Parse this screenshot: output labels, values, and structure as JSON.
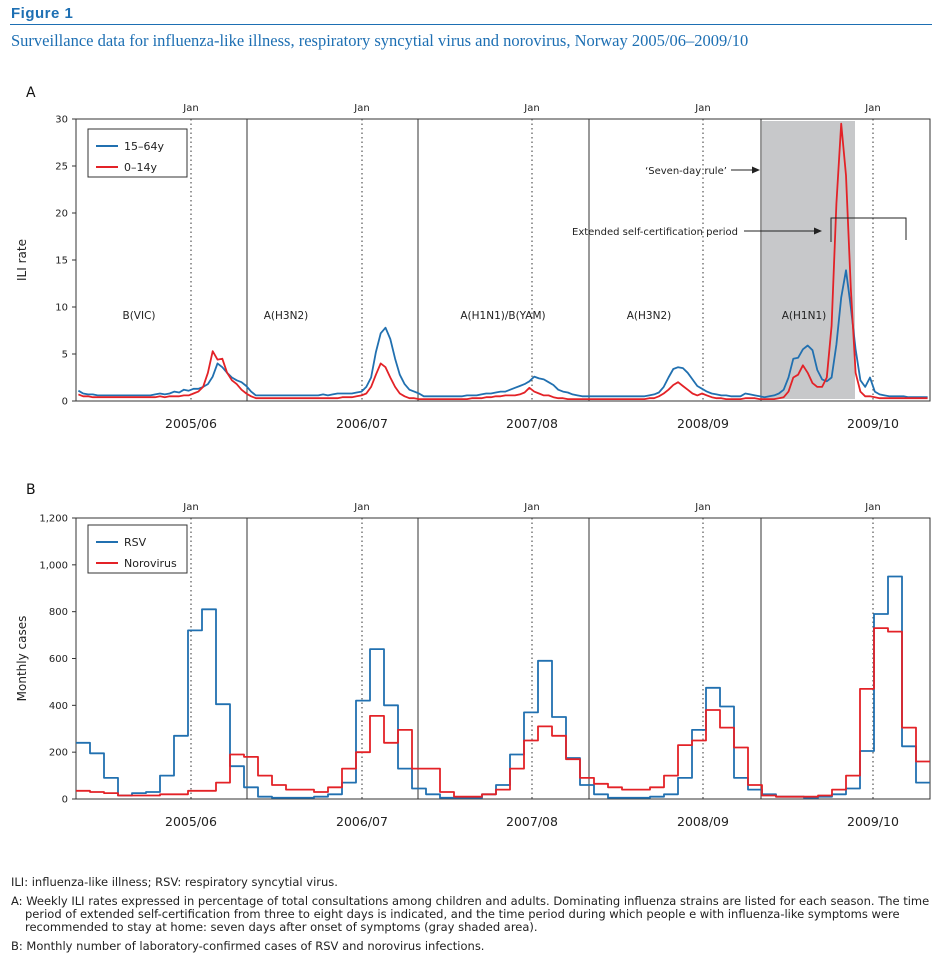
{
  "figure_label": "Figure 1",
  "figure_title": "Surveillance data for influenza-like illness, respiratory syncytial virus and norovirus, Norway 2005/06–2009/10",
  "colors": {
    "blue": "#2170b0",
    "red": "#e32227",
    "shade": "#c7c8ca",
    "accent": "#1d6fb3"
  },
  "chart_data": [
    {
      "panel": "A",
      "type": "line",
      "ylabel": "ILI rate",
      "ylim": [
        0,
        30
      ],
      "yticks": [
        "0",
        "5",
        "10",
        "15",
        "20",
        "25",
        "30"
      ],
      "season_labels": [
        "2005/06",
        "2006/07",
        "2007/08",
        "2008/09",
        "2009/10"
      ],
      "jan_label": "Jan",
      "strains": [
        "B(VIC)",
        "A(H3N2)",
        "A(H1N1)/B(YAM)",
        "A(H3N2)",
        "A(H1N1)"
      ],
      "legend": [
        "15–64y",
        "0–14y"
      ],
      "annotations": {
        "seven_day": "‘Seven-day rule’",
        "extended": "Extended self-certification period"
      },
      "series": [
        {
          "name": "15–64y",
          "values": [
            1.1,
            0.8,
            0.7,
            0.7,
            0.6,
            0.6,
            0.6,
            0.6,
            0.6,
            0.6,
            0.6,
            0.6,
            0.6,
            0.6,
            0.6,
            0.6,
            0.7,
            0.8,
            0.7,
            0.8,
            1,
            0.9,
            1.2,
            1.1,
            1.3,
            1.3,
            1.5,
            1.8,
            2.6,
            4,
            3.6,
            3,
            2.5,
            2.2,
            2,
            1.6,
            1,
            0.6,
            0.6,
            0.6,
            0.6,
            0.6,
            0.6,
            0.6,
            0.6,
            0.6,
            0.6,
            0.6,
            0.6,
            0.6,
            0.6,
            0.7,
            0.6,
            0.7,
            0.8,
            0.8,
            0.8,
            0.8,
            0.9,
            1,
            1.5,
            2.5,
            5.2,
            7.2,
            7.8,
            6.6,
            4.5,
            2.8,
            1.8,
            1.2,
            1,
            0.8,
            0.5,
            0.5,
            0.5,
            0.5,
            0.5,
            0.5,
            0.5,
            0.5,
            0.5,
            0.6,
            0.6,
            0.6,
            0.7,
            0.8,
            0.8,
            0.9,
            1,
            1,
            1.2,
            1.4,
            1.6,
            1.8,
            2.1,
            2.6,
            2.4,
            2.3,
            2,
            1.7,
            1.2,
            1,
            0.9,
            0.7,
            0.6,
            0.5,
            0.5,
            0.5,
            0.5,
            0.5,
            0.5,
            0.5,
            0.5,
            0.5,
            0.5,
            0.5,
            0.5,
            0.5,
            0.5,
            0.6,
            0.7,
            0.9,
            1.5,
            2.5,
            3.4,
            3.6,
            3.5,
            3,
            2.3,
            1.6,
            1.3,
            1,
            0.8,
            0.7,
            0.6,
            0.6,
            0.5,
            0.5,
            0.5,
            0.8,
            0.7,
            0.6,
            0.5,
            0.4,
            0.5,
            0.6,
            0.8,
            1.2,
            2.5,
            4.5,
            4.6,
            5.5,
            5.9,
            5.4,
            3.3,
            2.3,
            2.1,
            2.5,
            6,
            11,
            13.9,
            10,
            5.5,
            2.2,
            1.5,
            2.5,
            1,
            0.7,
            0.6,
            0.5,
            0.5,
            0.5,
            0.5,
            0.4,
            0.4,
            0.4,
            0.4,
            0.4
          ]
        },
        {
          "name": "0–14y",
          "values": [
            0.7,
            0.5,
            0.5,
            0.4,
            0.4,
            0.4,
            0.4,
            0.4,
            0.4,
            0.4,
            0.4,
            0.4,
            0.4,
            0.4,
            0.4,
            0.4,
            0.4,
            0.5,
            0.4,
            0.5,
            0.5,
            0.5,
            0.6,
            0.6,
            0.8,
            1,
            1.5,
            3,
            5.3,
            4.4,
            4.5,
            3,
            2.2,
            1.8,
            1.2,
            0.8,
            0.5,
            0.3,
            0.3,
            0.3,
            0.3,
            0.3,
            0.3,
            0.3,
            0.3,
            0.3,
            0.3,
            0.3,
            0.3,
            0.3,
            0.3,
            0.3,
            0.3,
            0.3,
            0.3,
            0.4,
            0.4,
            0.4,
            0.5,
            0.6,
            0.8,
            1.5,
            2.8,
            4,
            3.6,
            2.5,
            1.5,
            0.8,
            0.5,
            0.3,
            0.3,
            0.2,
            0.2,
            0.2,
            0.2,
            0.2,
            0.2,
            0.2,
            0.2,
            0.2,
            0.2,
            0.2,
            0.3,
            0.3,
            0.3,
            0.4,
            0.4,
            0.5,
            0.5,
            0.6,
            0.6,
            0.6,
            0.7,
            0.9,
            1.4,
            1,
            0.8,
            0.6,
            0.6,
            0.4,
            0.3,
            0.3,
            0.2,
            0.2,
            0.2,
            0.2,
            0.2,
            0.2,
            0.2,
            0.2,
            0.2,
            0.2,
            0.2,
            0.2,
            0.2,
            0.2,
            0.2,
            0.2,
            0.2,
            0.3,
            0.3,
            0.5,
            0.8,
            1.2,
            1.7,
            2,
            1.6,
            1.2,
            0.8,
            0.6,
            0.8,
            0.6,
            0.4,
            0.3,
            0.3,
            0.2,
            0.2,
            0.2,
            0.2,
            0.3,
            0.3,
            0.3,
            0.2,
            0.2,
            0.2,
            0.2,
            0.3,
            0.4,
            1,
            2.5,
            2.8,
            3.8,
            3,
            1.9,
            1.5,
            1.5,
            2.5,
            8,
            21,
            29.5,
            24,
            12,
            3,
            1,
            0.5,
            0.5,
            0.4,
            0.3,
            0.3,
            0.3,
            0.3,
            0.3,
            0.3,
            0.3,
            0.3,
            0.3,
            0.3,
            0.3
          ]
        }
      ]
    },
    {
      "panel": "B",
      "type": "line",
      "ylabel": "Monthly cases",
      "ylim": [
        0,
        1200
      ],
      "yticks": [
        "0",
        "200",
        "400",
        "600",
        "800",
        "1,000",
        "1,200"
      ],
      "season_labels": [
        "2005/06",
        "2006/07",
        "2007/08",
        "2008/09",
        "2009/10"
      ],
      "jan_label": "Jan",
      "legend": [
        "RSV",
        "Norovirus"
      ],
      "series": [
        {
          "name": "RSV",
          "values": [
            240,
            195,
            90,
            15,
            25,
            30,
            100,
            270,
            720,
            810,
            405,
            140,
            50,
            10,
            5,
            5,
            5,
            10,
            20,
            70,
            420,
            640,
            400,
            130,
            45,
            20,
            5,
            5,
            5,
            20,
            60,
            190,
            370,
            590,
            350,
            175,
            60,
            20,
            5,
            5,
            5,
            10,
            20,
            90,
            295,
            475,
            395,
            90,
            40,
            20,
            10,
            10,
            5,
            10,
            20,
            45,
            205,
            790,
            950,
            225,
            70
          ]
        },
        {
          "name": "Norovirus",
          "values": [
            35,
            30,
            25,
            15,
            15,
            15,
            20,
            20,
            35,
            35,
            70,
            190,
            180,
            100,
            60,
            40,
            40,
            30,
            50,
            130,
            200,
            355,
            240,
            295,
            130,
            130,
            30,
            10,
            10,
            20,
            40,
            130,
            250,
            310,
            270,
            170,
            90,
            65,
            50,
            40,
            40,
            50,
            100,
            230,
            250,
            380,
            305,
            220,
            60,
            15,
            10,
            10,
            10,
            15,
            40,
            100,
            470,
            730,
            715,
            305,
            160
          ]
        }
      ]
    }
  ],
  "notes": {
    "line1": "ILI: influenza-like illness; RSV: respiratory syncytial virus.",
    "lineA": "A: Weekly ILI rates expressed in percentage of total consultations among children and adults. Dominating influenza strains are listed for each season. The time period of extended self-certification from three to eight days is indicated, and the time period during which people e with influenza-like symptoms were recommended to stay at home: seven days after onset of symptoms (gray shaded area).",
    "lineB": "B: Monthly number of laboratory-confirmed cases of RSV and norovirus infections."
  }
}
